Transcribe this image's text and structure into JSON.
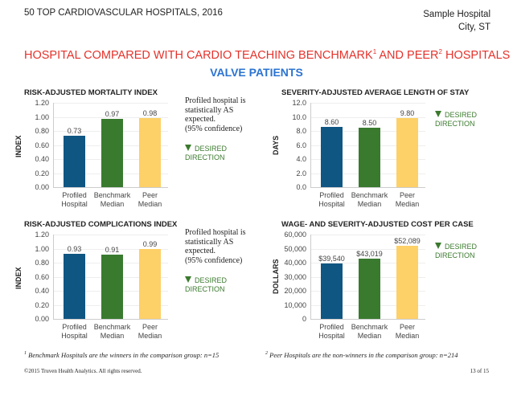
{
  "header": {
    "left": "50 TOP CARDIOVASCULAR HOSPITALS, 2016",
    "right_line1": "Sample Hospital",
    "right_line2": "City, ST"
  },
  "title": {
    "text_a": "HOSPITAL COMPARED WITH CARDIO TEACHING BENCHMARK",
    "sup_a": "1",
    "text_b": " AND PEER",
    "sup_b": "2",
    "text_c": " HOSPITALS"
  },
  "subtitle": "VALVE PATIENTS",
  "colors": {
    "profiled": "#0f5683",
    "benchmark": "#397a2f",
    "peer": "#fdd068",
    "title": "#e4322b",
    "subtitle": "#2b73d2",
    "desired": "#3b7a2e"
  },
  "desired_direction": {
    "icon": "triangle-down-icon",
    "line1": "DESIRED",
    "line2": "DIRECTION"
  },
  "chart_data": [
    {
      "type": "bar",
      "title": "RISK-ADJUSTED MORTALITY INDEX",
      "ylabel": "INDEX",
      "categories": [
        "Profiled|Hospital",
        "Benchmark|Median",
        "Peer|Median"
      ],
      "values": [
        0.73,
        0.97,
        0.98
      ],
      "value_labels": [
        "0.73",
        "0.97",
        "0.98"
      ],
      "ylim": [
        0,
        1.2
      ],
      "yticks": [
        "0.00",
        "0.20",
        "0.40",
        "0.60",
        "0.80",
        "1.00",
        "1.20"
      ],
      "note": [
        "Profiled hospital is",
        "statistically AS",
        "expected.",
        "(95% confidence)"
      ]
    },
    {
      "type": "bar",
      "title": "SEVERITY-ADJUSTED AVERAGE LENGTH OF STAY",
      "ylabel": "DAYS",
      "categories": [
        "Profiled|Hospital",
        "Benchmark|Median",
        "Peer|Median"
      ],
      "values": [
        8.6,
        8.5,
        9.8
      ],
      "value_labels": [
        "8.60",
        "8.50",
        "9.80"
      ],
      "ylim": [
        0,
        12
      ],
      "yticks": [
        "0.0",
        "2.0",
        "4.0",
        "6.0",
        "8.0",
        "10.0",
        "12.0"
      ],
      "note": []
    },
    {
      "type": "bar",
      "title": "RISK-ADJUSTED COMPLICATIONS INDEX",
      "ylabel": "INDEX",
      "categories": [
        "Profiled|Hospital",
        "Benchmark|Median",
        "Peer|Median"
      ],
      "values": [
        0.93,
        0.91,
        0.99
      ],
      "value_labels": [
        "0.93",
        "0.91",
        "0.99"
      ],
      "ylim": [
        0,
        1.2
      ],
      "yticks": [
        "0.00",
        "0.20",
        "0.40",
        "0.60",
        "0.80",
        "1.00",
        "1.20"
      ],
      "note": [
        "Profiled hospital is",
        "statistically AS",
        "expected.",
        "(95% confidence)"
      ]
    },
    {
      "type": "bar",
      "title": "WAGE- AND SEVERITY-ADJUSTED COST PER CASE",
      "ylabel": "DOLLARS",
      "categories": [
        "Profiled|Hospital",
        "Benchmark|Median",
        "Peer|Median"
      ],
      "values": [
        39540,
        43019,
        52089
      ],
      "value_labels": [
        "$39,540",
        "$43,019",
        "$52,089"
      ],
      "ylim": [
        0,
        60000
      ],
      "yticks": [
        "0",
        "10,000",
        "20,000",
        "30,000",
        "40,000",
        "50,000",
        "60,000"
      ],
      "note": []
    }
  ],
  "footnotes": {
    "sup1": "1",
    "text1": " Benchmark Hospitals are the winners in the comparison group: n=15",
    "sup2": "2",
    "text2": " Peer Hospitals are the non-winners in the comparison group: n=214"
  },
  "footer": {
    "copyright": "©2015 Truven Health Analytics. All rights reserved.",
    "page": "13 of 15"
  }
}
